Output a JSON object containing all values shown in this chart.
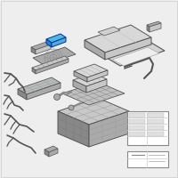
{
  "bg_color": "#eeeeee",
  "highlight_color": "#4db8e8",
  "component_color": "#c8c8c8",
  "dark_gray": "#888888",
  "mid_gray": "#aaaaaa",
  "light_gray": "#d8d8d8",
  "edge_color": "#555555",
  "wire_color": "#555555",
  "white": "#ffffff",
  "dark_box": "#909090",
  "grid_color": "#999999"
}
